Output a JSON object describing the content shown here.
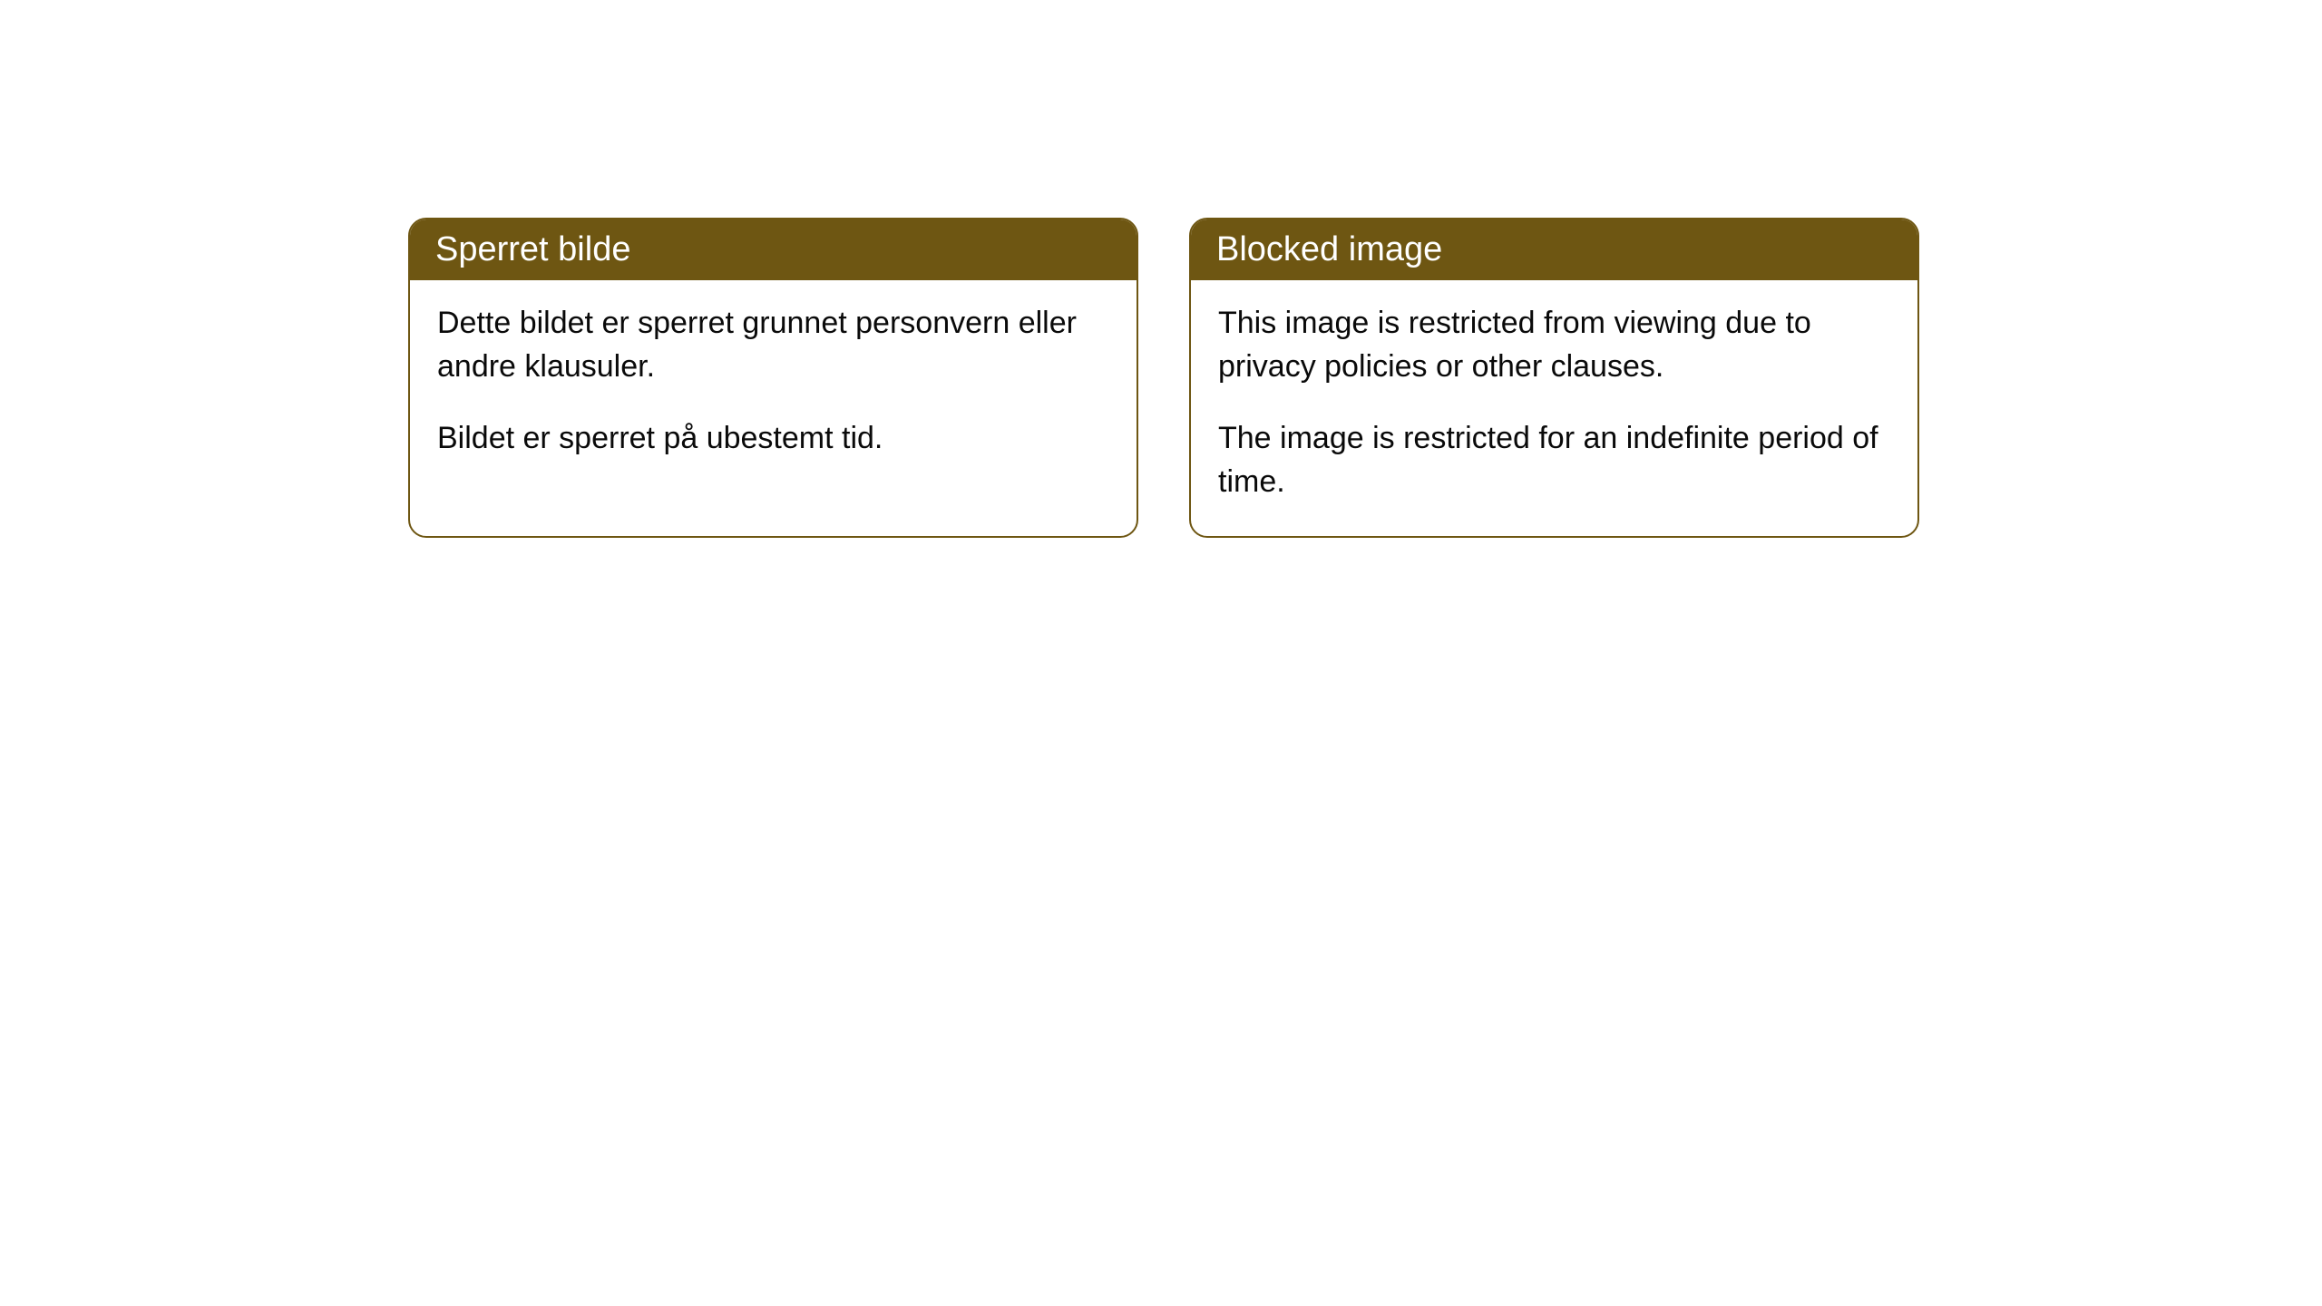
{
  "cards": [
    {
      "title": "Sperret bilde",
      "paragraph1": "Dette bildet er sperret grunnet personvern eller andre klausuler.",
      "paragraph2": "Bildet er sperret på ubestemt tid."
    },
    {
      "title": "Blocked image",
      "paragraph1": "This image is restricted from viewing due to privacy policies or other clauses.",
      "paragraph2": "The image is restricted for an indefinite period of time."
    }
  ],
  "style": {
    "header_background": "#6e5612",
    "header_text_color": "#ffffff",
    "border_color": "#6e5612",
    "body_background": "#ffffff",
    "body_text_color": "#0a0a0a",
    "border_radius": 20,
    "title_fontsize": 38,
    "body_fontsize": 34
  }
}
